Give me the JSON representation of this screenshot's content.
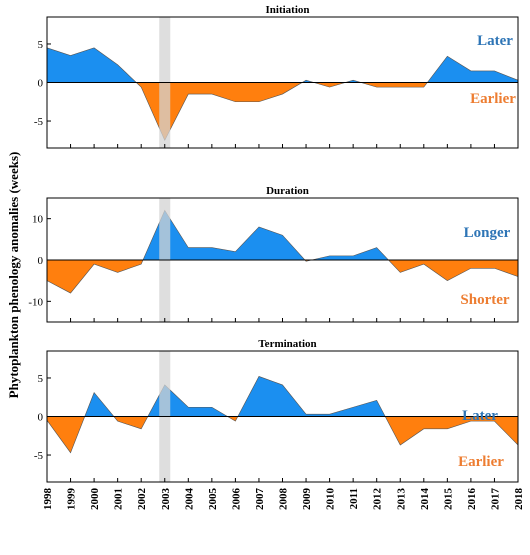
{
  "chart_data": {
    "type": "area",
    "ylabel": "Phytoplankton phenology anomalies (weeks)",
    "x": [
      1998,
      1999,
      2000,
      2001,
      2002,
      2003,
      2004,
      2005,
      2006,
      2007,
      2008,
      2009,
      2010,
      2011,
      2012,
      2013,
      2014,
      2015,
      2016,
      2017,
      2018
    ],
    "highlight_year": 2003,
    "positive_color": "#1b8ff0",
    "negative_color": "#ff7f0e",
    "panels": [
      {
        "title": "Initiation",
        "ylim": [
          -8.5,
          8.5
        ],
        "yticks": [
          -5,
          0,
          5
        ],
        "values": [
          4.5,
          3.5,
          4.5,
          2.3,
          -0.6,
          -7.5,
          -1.5,
          -1.5,
          -2.5,
          -2.5,
          -1.5,
          0.3,
          -0.6,
          0.3,
          -0.6,
          -0.6,
          -0.6,
          3.4,
          1.5,
          1.5,
          0.3
        ],
        "positive_label": "Later",
        "negative_label": "Earlier"
      },
      {
        "title": "Duration",
        "ylim": [
          -15,
          15
        ],
        "yticks": [
          -10,
          0,
          10
        ],
        "values": [
          -5,
          -8,
          -1,
          -3,
          -1,
          12,
          3,
          3,
          2,
          8,
          6,
          -0.3,
          1,
          1,
          3,
          -3,
          -1,
          -5,
          -2,
          -2,
          -4
        ],
        "positive_label": "Longer",
        "negative_label": "Shorter"
      },
      {
        "title": "Termination",
        "ylim": [
          -8.5,
          8.5
        ],
        "yticks": [
          -5,
          0,
          5
        ],
        "values": [
          -0.5,
          -4.7,
          3.1,
          -0.6,
          -1.6,
          4.1,
          1.2,
          1.2,
          -0.6,
          5.2,
          4.1,
          0.3,
          0.3,
          1.2,
          2.1,
          -3.7,
          -1.6,
          -1.6,
          -0.6,
          -0.6,
          -3.7
        ],
        "positive_label": "Later",
        "negative_label": "Earlier"
      }
    ]
  }
}
